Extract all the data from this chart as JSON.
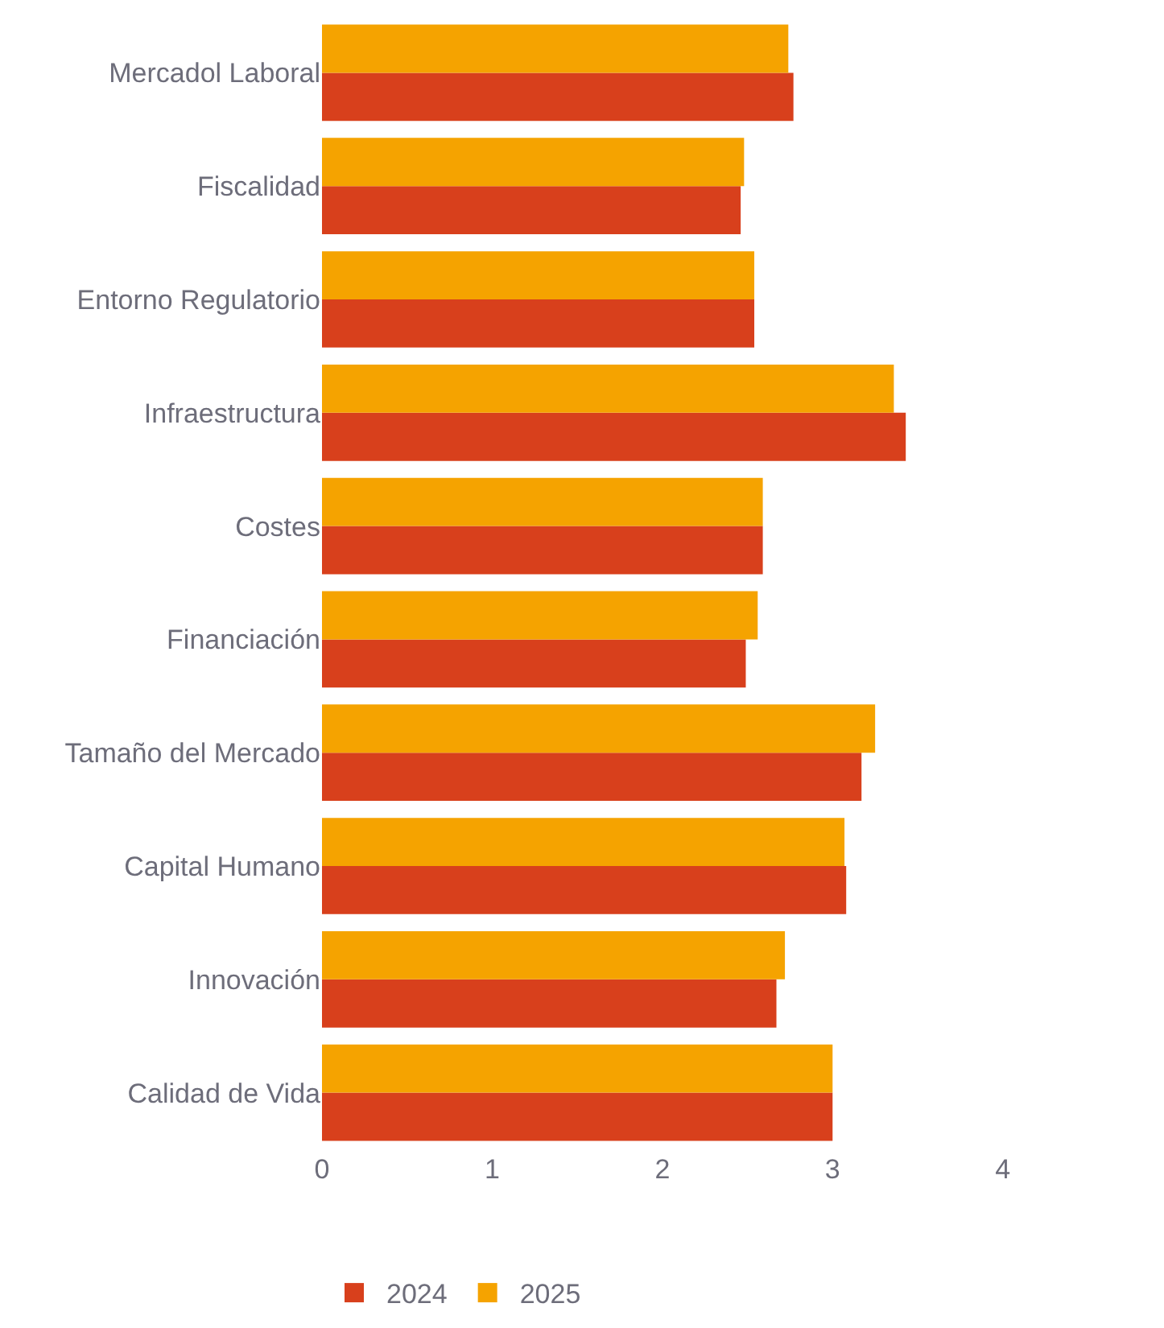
{
  "chart_data": {
    "type": "bar",
    "orientation": "horizontal",
    "categories": [
      "Mercadol Laboral",
      "Fiscalidad",
      "Entorno Regulatorio",
      "Infraestructura",
      "Costes",
      "Financiación",
      "Tamaño del Mercado",
      "Capital Humano",
      "Innovación",
      "Calidad de Vida"
    ],
    "series": [
      {
        "name": "2024",
        "color": "#d8401c",
        "values": [
          2.77,
          2.46,
          2.54,
          3.43,
          2.59,
          2.49,
          3.17,
          3.08,
          2.67,
          3.0
        ]
      },
      {
        "name": "2025",
        "color": "#f5a300",
        "values": [
          2.74,
          2.48,
          2.54,
          3.36,
          2.59,
          2.56,
          3.25,
          3.07,
          2.72,
          3.0
        ]
      }
    ],
    "xlim": [
      0,
      4.9
    ],
    "xticks": [
      0,
      1,
      2,
      3,
      4
    ],
    "grid": false,
    "legend": "bottom left"
  }
}
